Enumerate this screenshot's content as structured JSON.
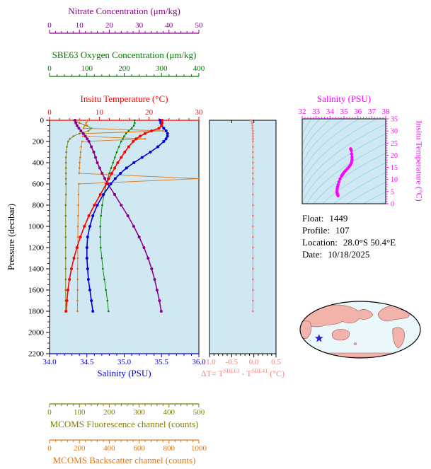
{
  "info": {
    "rows": [
      {
        "label": "Float:",
        "value": "1449"
      },
      {
        "label": "Profile:",
        "value": "107"
      },
      {
        "label": "Location:",
        "value": "28.0°S  50.4°E"
      },
      {
        "label": "Date:",
        "value": "10/18/2025"
      }
    ]
  },
  "chart_data": [
    {
      "id": "profile-plot",
      "type": "line",
      "ylabel": "Pressure (decibar)",
      "ylim": [
        0,
        2200
      ],
      "yticks": [
        0,
        200,
        400,
        600,
        800,
        1000,
        1200,
        1400,
        1600,
        1800,
        2000,
        2200
      ],
      "background": "#cfe8f2",
      "pressure": [
        0,
        25,
        50,
        75,
        100,
        125,
        150,
        175,
        200,
        250,
        300,
        350,
        400,
        450,
        500,
        550,
        600,
        700,
        800,
        900,
        1000,
        1100,
        1200,
        1300,
        1400,
        1500,
        1600,
        1700,
        1800
      ],
      "axes": [
        {
          "key": "nitrate",
          "label": "Nitrate Concentration (μm/kg)",
          "color": "#8b008b",
          "lim": [
            0,
            50
          ],
          "ticks": [
            "0",
            "10",
            "20",
            "30",
            "40",
            "50"
          ],
          "minor": 2
        },
        {
          "key": "oxygen",
          "label": "SBE63 Oxygen Concentration (μm/kg)",
          "color": "#007a00",
          "lim": [
            0,
            400
          ],
          "ticks": [
            "0",
            "100",
            "200",
            "300",
            "400"
          ],
          "minor": 20
        },
        {
          "key": "temperature",
          "label": "Insitu Temperature (°C)",
          "color": "#ff0000",
          "lim": [
            0,
            30
          ],
          "ticks": [
            "0",
            "10",
            "20",
            "30"
          ],
          "minor": 2
        },
        {
          "key": "salinity",
          "label": "Salinity (PSU)",
          "color": "#0000dd",
          "lim": [
            34,
            36
          ],
          "ticks": [
            "34.0",
            "34.5",
            "35.0",
            "35.5",
            "36.0"
          ],
          "minor": 0.1
        },
        {
          "key": "fluorescence",
          "label": "MCOMS Fluorescence channel (counts)",
          "color": "#808000",
          "lim": [
            0,
            500
          ],
          "ticks": [
            "0",
            "100",
            "200",
            "300",
            "400",
            "500"
          ],
          "minor": 20
        },
        {
          "key": "backscatter",
          "label": "MCOMS Backscatter channel (counts)",
          "color": "#e07818",
          "lim": [
            0,
            1000
          ],
          "ticks": [
            "0",
            "200",
            "400",
            "600",
            "800",
            "1000"
          ],
          "minor": 40
        }
      ],
      "series": [
        {
          "key": "temperature",
          "values": [
            22.6,
            22.6,
            22.5,
            22.0,
            20.5,
            19.2,
            18.2,
            17.4,
            16.8,
            15.9,
            15.1,
            14.4,
            13.7,
            13.1,
            12.5,
            11.9,
            11.4,
            10.2,
            9.0,
            7.9,
            7.0,
            6.2,
            5.5,
            4.9,
            4.4,
            4.0,
            3.7,
            3.5,
            3.3
          ]
        },
        {
          "key": "salinity",
          "values": [
            35.48,
            35.49,
            35.5,
            35.53,
            35.56,
            35.58,
            35.58,
            35.56,
            35.53,
            35.45,
            35.35,
            35.24,
            35.13,
            35.03,
            34.95,
            34.88,
            34.82,
            34.72,
            34.64,
            34.58,
            34.54,
            34.51,
            34.5,
            34.5,
            34.51,
            34.52,
            34.54,
            34.56,
            34.58
          ]
        },
        {
          "key": "nitrate",
          "values": [
            8.5,
            8.8,
            9.2,
            9.8,
            10.5,
            11.3,
            12.0,
            12.6,
            13.2,
            14.0,
            14.8,
            15.4,
            16.0,
            16.8,
            17.6,
            18.5,
            19.5,
            21.8,
            24.0,
            26.2,
            28.2,
            30.0,
            31.6,
            33.0,
            34.2,
            35.2,
            36.0,
            36.8,
            37.4
          ]
        },
        {
          "key": "oxygen",
          "values": [
            228,
            228,
            226,
            220,
            212,
            205,
            200,
            196,
            192,
            186,
            180,
            175,
            170,
            165,
            160,
            156,
            152,
            146,
            141,
            138,
            136,
            136,
            137,
            140,
            143,
            147,
            151,
            155,
            158
          ]
        },
        {
          "key": "fluorescence",
          "values": [
            80,
            100,
            125,
            140,
            130,
            100,
            80,
            68,
            62,
            58,
            56,
            55,
            55,
            55,
            55,
            55,
            55,
            55,
            54,
            54,
            54,
            54,
            54,
            54,
            54,
            54,
            54,
            54,
            54
          ]
        },
        {
          "key": "backscatter",
          "values": [
            260,
            245,
            235,
            228,
            760,
            230,
            222,
            640,
            218,
            212,
            208,
            205,
            202,
            200,
            198,
            1000,
            196,
            194,
            192,
            191,
            190,
            190,
            189,
            189,
            188,
            188,
            188,
            187,
            187
          ]
        }
      ]
    },
    {
      "id": "temperature-difference-plot",
      "type": "line",
      "xlabel_parts": [
        "ΔT= T",
        "SBE63",
        " - T",
        "SBE41",
        " (°C)"
      ],
      "xlim": [
        -1.0,
        0.5
      ],
      "xticks": [
        "-1.0",
        "-0.5",
        "0.0",
        "0.5"
      ],
      "minor": 0.1,
      "color": "#f5837b",
      "pressure": [
        0,
        25,
        50,
        75,
        100,
        125,
        150,
        175,
        200,
        250,
        300,
        350,
        400,
        450,
        500,
        550,
        600,
        700,
        800,
        900,
        1000,
        1100,
        1200,
        1300,
        1400,
        1500,
        1600,
        1700,
        1800
      ],
      "values": [
        -0.06,
        -0.04,
        -0.03,
        -0.03,
        -0.02,
        -0.02,
        -0.02,
        -0.02,
        -0.02,
        -0.02,
        -0.02,
        -0.02,
        -0.02,
        -0.02,
        -0.02,
        -0.02,
        -0.02,
        -0.02,
        -0.02,
        -0.02,
        -0.02,
        -0.02,
        -0.02,
        -0.02,
        -0.02,
        -0.02,
        -0.02,
        -0.02,
        -0.02
      ]
    },
    {
      "id": "ts-diagram",
      "type": "line",
      "xlabel": "Salinity (PSU)",
      "ylabel": "Insitu Temperature (°C)",
      "xlim": [
        32,
        38
      ],
      "xticks": [
        "32",
        "33",
        "34",
        "35",
        "36",
        "37",
        "38"
      ],
      "x_minor": 0.2,
      "ylim": [
        0,
        35
      ],
      "yticks": [
        "0",
        "5",
        "10",
        "15",
        "20",
        "25",
        "30",
        "35"
      ],
      "y_minor": 1,
      "color": "#ff00ff",
      "background": "#cfe8f2",
      "contour_color": "#8ed2e2",
      "note": "curve plots profile salinity vs insitu temperature over isopycnal contours"
    },
    {
      "id": "location-map",
      "type": "map",
      "marker": {
        "symbol": "star",
        "color": "#2323cc",
        "lat": -28.0,
        "lon": 50.4
      },
      "land_color": "#f2b3ab",
      "land_edge_color": "#a05048",
      "ocean_color": "#eaf7fb",
      "outline_color": "#000000"
    }
  ]
}
